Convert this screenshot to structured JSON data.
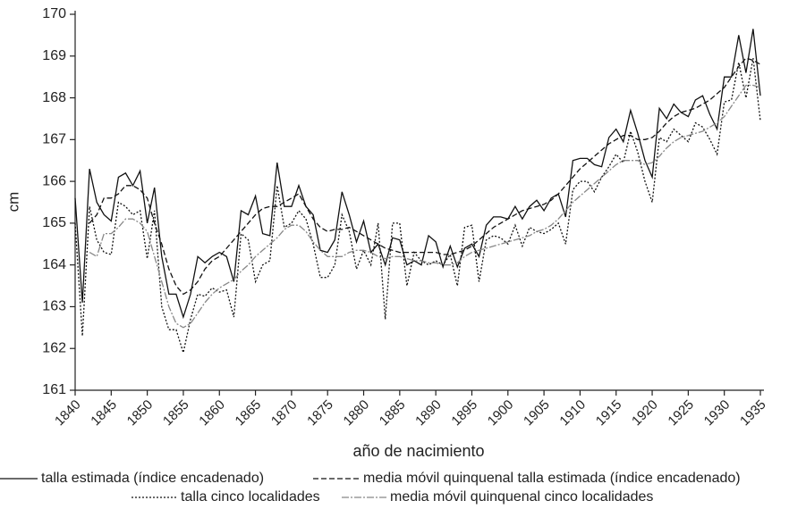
{
  "chart_data": {
    "type": "line",
    "x_label": "año de nacimiento",
    "y_label": "cm",
    "x": [
      1840,
      1841,
      1842,
      1843,
      1844,
      1845,
      1846,
      1847,
      1848,
      1849,
      1850,
      1851,
      1852,
      1853,
      1854,
      1855,
      1856,
      1857,
      1858,
      1859,
      1860,
      1861,
      1862,
      1863,
      1864,
      1865,
      1866,
      1867,
      1868,
      1869,
      1870,
      1871,
      1872,
      1873,
      1874,
      1875,
      1876,
      1877,
      1878,
      1879,
      1880,
      1881,
      1882,
      1883,
      1884,
      1885,
      1886,
      1887,
      1888,
      1889,
      1890,
      1891,
      1892,
      1893,
      1894,
      1895,
      1896,
      1897,
      1898,
      1899,
      1900,
      1901,
      1902,
      1903,
      1904,
      1905,
      1906,
      1907,
      1908,
      1909,
      1910,
      1911,
      1912,
      1913,
      1914,
      1915,
      1916,
      1917,
      1918,
      1919,
      1920,
      1921,
      1922,
      1923,
      1924,
      1925,
      1926,
      1927,
      1928,
      1929,
      1930,
      1931,
      1932,
      1933,
      1934,
      1935
    ],
    "series": [
      {
        "name": "talla estimada (índice encadenado)",
        "color": "#111111",
        "style": "solid",
        "values": [
          165.6,
          163.1,
          166.3,
          165.5,
          165.2,
          165.05,
          166.1,
          166.2,
          165.9,
          166.25,
          165.0,
          165.85,
          164.2,
          163.3,
          163.3,
          162.75,
          163.3,
          164.2,
          164.05,
          164.2,
          164.3,
          164.2,
          163.6,
          165.3,
          165.2,
          165.65,
          164.75,
          164.7,
          166.45,
          165.4,
          165.4,
          165.9,
          165.4,
          165.2,
          164.35,
          164.3,
          164.6,
          165.75,
          165.2,
          164.55,
          165.05,
          164.3,
          164.5,
          164.0,
          164.65,
          164.6,
          164.0,
          164.1,
          164.0,
          164.7,
          164.55,
          163.95,
          164.45,
          163.95,
          164.4,
          164.5,
          164.2,
          164.95,
          165.15,
          165.15,
          165.1,
          165.4,
          165.1,
          165.4,
          165.55,
          165.3,
          165.6,
          165.7,
          165.15,
          166.5,
          166.55,
          166.55,
          166.4,
          166.35,
          167.05,
          167.25,
          166.95,
          167.7,
          167.15,
          166.5,
          166.1,
          167.75,
          167.5,
          167.85,
          167.65,
          167.55,
          167.95,
          168.05,
          167.6,
          167.25,
          168.5,
          168.5,
          169.5,
          168.6,
          169.65,
          168.05
        ]
      },
      {
        "name": "media móvil quinquenal talla estimada (índice encadenado)",
        "color": "#111111",
        "style": "dashed",
        "values": [
          null,
          null,
          165.0,
          165.2,
          165.6,
          165.6,
          165.7,
          165.9,
          165.9,
          165.8,
          165.6,
          165.0,
          164.5,
          163.9,
          163.5,
          163.3,
          163.4,
          163.6,
          163.9,
          164.1,
          164.2,
          164.4,
          164.6,
          164.8,
          165.0,
          165.2,
          165.35,
          165.4,
          165.4,
          165.5,
          165.6,
          165.7,
          165.4,
          165.1,
          164.9,
          164.8,
          164.85,
          164.85,
          164.9,
          164.8,
          164.7,
          164.6,
          164.5,
          164.4,
          164.35,
          164.3,
          164.3,
          164.3,
          164.3,
          164.3,
          164.3,
          164.25,
          164.25,
          164.3,
          164.35,
          164.45,
          164.6,
          164.75,
          164.9,
          165.0,
          165.1,
          165.2,
          165.3,
          165.35,
          165.4,
          165.45,
          165.55,
          165.7,
          165.9,
          166.1,
          166.3,
          166.45,
          166.6,
          166.75,
          166.9,
          167.0,
          167.1,
          167.1,
          167.0,
          167.0,
          167.05,
          167.2,
          167.4,
          167.55,
          167.65,
          167.7,
          167.75,
          167.85,
          167.95,
          168.1,
          168.25,
          168.5,
          168.75,
          168.95,
          168.9,
          168.8
        ]
      },
      {
        "name": "talla cinco localidades",
        "color": "#111111",
        "style": "dotted",
        "values": [
          165.0,
          162.3,
          165.4,
          164.6,
          164.3,
          164.25,
          165.5,
          165.4,
          165.2,
          165.3,
          164.15,
          165.3,
          163.0,
          162.45,
          162.45,
          161.9,
          162.7,
          163.3,
          163.25,
          163.45,
          163.35,
          163.4,
          162.75,
          164.75,
          164.6,
          163.6,
          164.0,
          164.1,
          165.9,
          164.9,
          165.0,
          165.3,
          165.1,
          164.5,
          163.7,
          163.7,
          164.0,
          165.2,
          164.8,
          163.9,
          164.35,
          164.0,
          165.0,
          162.7,
          165.0,
          165.0,
          163.5,
          164.3,
          164.1,
          164.0,
          164.1,
          164.0,
          164.25,
          163.5,
          164.9,
          164.95,
          163.6,
          164.6,
          164.7,
          164.65,
          164.5,
          164.95,
          164.45,
          164.9,
          164.8,
          164.75,
          164.85,
          165.0,
          164.5,
          165.8,
          166.0,
          166.0,
          165.75,
          166.1,
          166.35,
          166.65,
          166.45,
          167.2,
          166.7,
          166.0,
          165.5,
          167.05,
          166.95,
          167.25,
          167.1,
          166.95,
          167.4,
          167.3,
          167.0,
          166.65,
          167.9,
          167.95,
          168.85,
          168.0,
          168.95,
          167.45
        ]
      },
      {
        "name": "media móvil quinquenal cinco localidades",
        "color": "#888888",
        "style": "dashdot",
        "values": [
          null,
          null,
          164.3,
          164.2,
          164.75,
          164.75,
          164.9,
          165.1,
          165.1,
          165.0,
          164.8,
          164.2,
          163.6,
          163.0,
          162.6,
          162.5,
          162.6,
          162.85,
          163.1,
          163.3,
          163.45,
          163.55,
          163.65,
          163.85,
          164.0,
          164.2,
          164.35,
          164.5,
          164.65,
          164.85,
          164.95,
          164.95,
          164.8,
          164.55,
          164.35,
          164.2,
          164.2,
          164.2,
          164.3,
          164.35,
          164.35,
          164.3,
          164.2,
          164.15,
          164.2,
          164.2,
          164.15,
          164.1,
          164.1,
          164.05,
          164.05,
          164.0,
          164.0,
          164.05,
          164.2,
          164.3,
          164.35,
          164.4,
          164.45,
          164.5,
          164.55,
          164.6,
          164.65,
          164.7,
          164.8,
          164.85,
          164.95,
          165.1,
          165.3,
          165.5,
          165.65,
          165.8,
          165.95,
          166.1,
          166.25,
          166.4,
          166.5,
          166.5,
          166.5,
          166.4,
          166.45,
          166.6,
          166.8,
          166.95,
          167.05,
          167.1,
          167.15,
          167.2,
          167.3,
          167.4,
          167.55,
          167.8,
          168.05,
          168.3,
          168.3,
          168.25
        ]
      }
    ],
    "xlim": [
      1840,
      1935
    ],
    "xticks": [
      1840,
      1845,
      1850,
      1855,
      1860,
      1865,
      1870,
      1875,
      1880,
      1885,
      1890,
      1895,
      1900,
      1905,
      1910,
      1915,
      1920,
      1925,
      1930,
      1935
    ],
    "ylim": [
      161,
      170
    ],
    "yticks": [
      161,
      162,
      163,
      164,
      165,
      166,
      167,
      168,
      169,
      170
    ],
    "grid": false
  }
}
